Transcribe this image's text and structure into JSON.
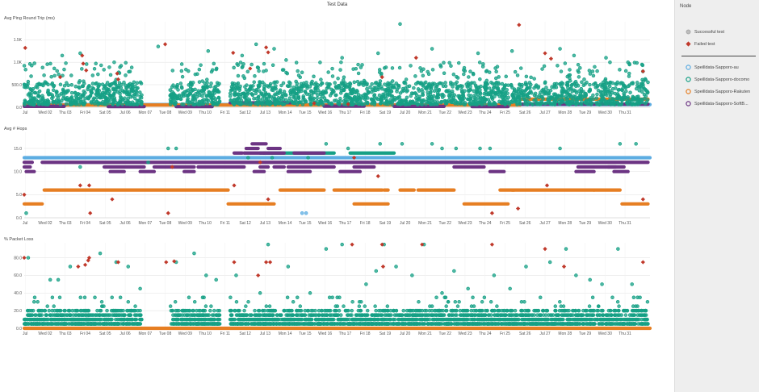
{
  "title": "Test Data",
  "sidebar": {
    "title": "Node",
    "status_items": [
      {
        "label": "Successful test",
        "shape": "circle",
        "color": "#bdbdbd"
      },
      {
        "label": "Failed test",
        "shape": "diamond",
        "color": "#c0392b"
      }
    ],
    "node_items": [
      {
        "label": "Speilldata-Sapporo-au",
        "color": "#5dade2"
      },
      {
        "label": "Speilldata-Sapporo-docomo",
        "color": "#16a085"
      },
      {
        "label": "Speilldata-Sapporo-Rakuten",
        "color": "#e67e22"
      },
      {
        "label": "Speilldata-Sapporo-SoftB...",
        "color": "#6c3483"
      }
    ]
  },
  "colors": {
    "au": "#5dade2",
    "docomo": "#16a085",
    "rakuten": "#e67e22",
    "softbank": "#6c3483",
    "failed": "#c0392b",
    "grid": "#e6e6e6"
  },
  "chart_data": [
    {
      "type": "scatter",
      "title": "Avg Ping Round Trip (ms)",
      "x_range": [
        0,
        31.3
      ],
      "y_range": [
        0,
        1900
      ],
      "y_ticks": [
        0,
        500,
        1000,
        1500
      ],
      "y_tick_labels": [
        "0.0",
        "500.0",
        "1.0K",
        "1.5K"
      ],
      "x_tick_labels": [
        "Jul",
        "Wed 02",
        "Thu 03",
        "Fri 04",
        "Sat 05",
        "Jul 06",
        "Mon 07",
        "Tue 08",
        "Wed 09",
        "Thu 10",
        "Fri 11",
        "Sat 12",
        "Jul 13",
        "Mon 14",
        "Tue 15",
        "Wed 16",
        "Thu 17",
        "Fri 18",
        "Sat 19",
        "Jul 20",
        "Mon 21",
        "Tue 22",
        "Wed 23",
        "Thu 24",
        "Fri 25",
        "Sat 26",
        "Jul 27",
        "Mon 28",
        "Tue 29",
        "Wed 30",
        "Thu 31"
      ],
      "series": [
        {
          "name": "Speilldata-Sapporo-au",
          "segments": [
            [
              0,
              31.3,
              60
            ]
          ]
        },
        {
          "name": "Speilldata-Sapporo-Rakuten",
          "segments": [
            [
              0,
              24.8,
              50
            ],
            [
              24.8,
              31.2,
              180
            ]
          ]
        },
        {
          "name": "Speilldata-Sapporo-SoftBank",
          "segments": [
            [
              0,
              2,
              20
            ],
            [
              4.2,
              6,
              15
            ],
            [
              7.6,
              9.4,
              15
            ],
            [
              10.3,
              13.5,
              100
            ],
            [
              15,
              17,
              25
            ],
            [
              18.5,
              21,
              20
            ],
            [
              22.4,
              24.2,
              15
            ],
            [
              24.8,
              31.2,
              70
            ]
          ]
        },
        {
          "name": "Speilldata-Sapporo-docomo",
          "ranges": [
            [
              0,
              5.9
            ],
            [
              7.3,
              9.8
            ],
            [
              10.3,
              31.2
            ]
          ],
          "max": 500,
          "outliers": [
            [
              1.9,
              1150
            ],
            [
              2.8,
              1200
            ],
            [
              4.5,
              1000
            ],
            [
              6.7,
              1350
            ],
            [
              9.2,
              1250
            ],
            [
              10.9,
              1150
            ],
            [
              11.6,
              1400
            ],
            [
              12.5,
              1300
            ],
            [
              13.1,
              1050
            ],
            [
              15.9,
              1100
            ],
            [
              17.7,
              1200
            ],
            [
              18.8,
              1850
            ],
            [
              20.4,
              1300
            ],
            [
              22.7,
              1200
            ],
            [
              24.4,
              1250
            ],
            [
              26.8,
              1300
            ],
            [
              27.5,
              1150
            ],
            [
              29.1,
              1100
            ],
            [
              30.2,
              1000
            ],
            [
              30.9,
              950
            ]
          ]
        }
      ],
      "failed": [
        [
          0.05,
          1320
        ],
        [
          1.8,
          670
        ],
        [
          2.9,
          1150
        ],
        [
          2.95,
          970
        ],
        [
          3.1,
          820
        ],
        [
          4.65,
          750
        ],
        [
          4.7,
          620
        ],
        [
          7.05,
          1400
        ],
        [
          10.45,
          1210
        ],
        [
          11.3,
          860
        ],
        [
          12.1,
          1330
        ],
        [
          12.2,
          1220
        ],
        [
          14.5,
          90
        ],
        [
          16.2,
          70
        ],
        [
          17.9,
          670
        ],
        [
          19.6,
          1100
        ],
        [
          24.75,
          1830
        ],
        [
          26.05,
          1200
        ],
        [
          26.35,
          1080
        ],
        [
          30.95,
          800
        ]
      ]
    },
    {
      "type": "scatter",
      "title": "Avg # Hops",
      "x_range": [
        0,
        31.3
      ],
      "y_range": [
        0,
        18.5
      ],
      "y_ticks": [
        0,
        5,
        10,
        15
      ],
      "y_tick_labels": [
        "0.0",
        "5.0",
        "10.0",
        "15.0"
      ],
      "x_tick_labels": [
        "Jul",
        "Wed 02",
        "Thu 03",
        "Fri 04",
        "Sat 05",
        "Jul 06",
        "Mon 07",
        "Tue 08",
        "Wed 09",
        "Thu 10",
        "Fri 11",
        "Sat 12",
        "Jul 13",
        "Mon 14",
        "Tue 15",
        "Wed 16",
        "Thu 17",
        "Fri 18",
        "Sat 19",
        "Jul 20",
        "Mon 21",
        "Tue 22",
        "Wed 23",
        "Thu 24",
        "Fri 25",
        "Sat 26",
        "Jul 27",
        "Mon 28",
        "Tue 29",
        "Wed 30",
        "Thu 31"
      ],
      "series": [
        {
          "name": "Speilldata-Sapporo-au",
          "segments": [
            [
              0,
              31.3,
              13
            ]
          ]
        },
        {
          "name": "Speilldata-Sapporo-docomo",
          "segments": [
            [
              11.8,
              15.5,
              14
            ],
            [
              16.3,
              18.5,
              14
            ]
          ]
        },
        {
          "name": "Speilldata-Sapporo-SoftBank",
          "segments": [
            [
              0,
              0.4,
              12
            ],
            [
              0.9,
              31.2,
              12
            ],
            [
              0,
              0.3,
              11
            ],
            [
              4,
              6,
              11
            ],
            [
              6.5,
              8.5,
              11
            ],
            [
              8.7,
              11,
              11
            ],
            [
              11.8,
              12.2,
              11
            ],
            [
              12.5,
              13,
              11
            ],
            [
              13.2,
              15.5,
              11
            ],
            [
              16.5,
              17.5,
              11
            ],
            [
              21.5,
              23,
              11
            ],
            [
              27.7,
              29.6,
              11
            ],
            [
              29.2,
              30,
              11
            ],
            [
              0.1,
              0.5,
              10
            ],
            [
              4.3,
              5,
              10
            ],
            [
              5.8,
              6.5,
              10
            ],
            [
              8,
              8.5,
              10
            ],
            [
              11.5,
              12,
              10
            ],
            [
              13.2,
              14.3,
              10
            ],
            [
              15.8,
              16.8,
              10
            ],
            [
              23.3,
              24,
              10
            ],
            [
              27.6,
              28.5,
              10
            ],
            [
              29.5,
              30.2,
              10
            ],
            [
              10.5,
              10.9,
              14
            ],
            [
              11,
              12,
              14
            ],
            [
              12,
              13,
              14
            ],
            [
              13.5,
              15,
              14
            ],
            [
              11.1,
              11.7,
              15
            ],
            [
              12.2,
              12.8,
              15
            ],
            [
              11.4,
              12.1,
              16
            ]
          ]
        },
        {
          "name": "Speilldata-Sapporo-Rakuten",
          "segments": [
            [
              0,
              0.9,
              3
            ],
            [
              1,
              10.2,
              6
            ],
            [
              10.2,
              12.5,
              3
            ],
            [
              12.8,
              15,
              6
            ],
            [
              15.5,
              17.9,
              6
            ],
            [
              18,
              18.2,
              6
            ],
            [
              16.5,
              18.2,
              3
            ],
            [
              18.8,
              19.5,
              6
            ],
            [
              19.7,
              21.5,
              6
            ],
            [
              22,
              24.2,
              3
            ],
            [
              23.8,
              24.5,
              6
            ],
            [
              24.4,
              28.5,
              6
            ],
            [
              28.5,
              29.8,
              6
            ],
            [
              29.9,
              31.2,
              3
            ]
          ]
        }
      ],
      "points": [
        [
          0.1,
          1
        ],
        [
          11.2,
          13
        ],
        [
          12.4,
          13
        ],
        [
          14.2,
          13
        ],
        [
          15.1,
          16
        ],
        [
          16.2,
          15
        ],
        [
          17.8,
          16
        ],
        [
          18.9,
          16
        ],
        [
          20.4,
          16
        ],
        [
          20.9,
          15
        ],
        [
          21.6,
          15
        ],
        [
          22.8,
          15
        ],
        [
          23.3,
          15
        ],
        [
          26.8,
          15
        ],
        [
          29.8,
          16
        ],
        [
          30.6,
          16
        ],
        [
          6.2,
          12
        ],
        [
          7.2,
          15
        ],
        [
          7.6,
          15
        ],
        [
          2.8,
          11
        ],
        [
          13.9,
          1
        ],
        [
          14.1,
          1
        ]
      ],
      "failed": [
        [
          0,
          5
        ],
        [
          2.8,
          7
        ],
        [
          3.25,
          7
        ],
        [
          3.3,
          1
        ],
        [
          4.4,
          4
        ],
        [
          7.2,
          1
        ],
        [
          7.4,
          11
        ],
        [
          10.5,
          7
        ],
        [
          11.8,
          12
        ],
        [
          12.2,
          4
        ],
        [
          16.5,
          13
        ],
        [
          17.7,
          9
        ],
        [
          23.4,
          1
        ],
        [
          24.7,
          2
        ],
        [
          26.15,
          7
        ],
        [
          30.95,
          4
        ]
      ]
    },
    {
      "type": "scatter",
      "title": "% Packet Loss",
      "x_range": [
        0,
        31.3
      ],
      "y_range": [
        0,
        97
      ],
      "y_ticks": [
        0,
        20,
        40,
        60,
        80
      ],
      "y_tick_labels": [
        "0.0",
        "20.0",
        "40.0",
        "60.0",
        "80.0"
      ],
      "x_tick_labels": [
        "Jul",
        "Wed 02",
        "Thu 03",
        "Fri 04",
        "Sat 05",
        "Jul 06",
        "Mon 07",
        "Tue 08",
        "Wed 09",
        "Thu 10",
        "Fri 11",
        "Sat 12",
        "Jul 13",
        "Mon 14",
        "Tue 15",
        "Wed 16",
        "Thu 17",
        "Fri 18",
        "Sat 19",
        "Jul 20",
        "Mon 21",
        "Tue 22",
        "Wed 23",
        "Thu 24",
        "Fri 25",
        "Sat 26",
        "Jul 27",
        "Mon 28",
        "Tue 29",
        "Wed 30",
        "Thu 31"
      ],
      "series": [
        {
          "name": "Speilldata-Sapporo-Rakuten",
          "segments": [
            [
              0,
              31.3,
              0
            ]
          ]
        },
        {
          "name": "Speilldata-Sapporo-docomo",
          "levels": [
            5,
            10,
            15,
            20
          ],
          "ranges": [
            [
              0,
              5.9
            ],
            [
              7.3,
              9.8
            ],
            [
              10.3,
              31.2
            ]
          ]
        }
      ],
      "points": [
        [
          0.2,
          80
        ],
        [
          1.3,
          55
        ],
        [
          1.7,
          55
        ],
        [
          2.3,
          70
        ],
        [
          3.8,
          85
        ],
        [
          4.6,
          75
        ],
        [
          5.2,
          70
        ],
        [
          5.8,
          45
        ],
        [
          7.6,
          75
        ],
        [
          8.5,
          85
        ],
        [
          9.1,
          60
        ],
        [
          9.6,
          55
        ],
        [
          10.6,
          60
        ],
        [
          11.8,
          40
        ],
        [
          12.2,
          95
        ],
        [
          13.2,
          70
        ],
        [
          14.3,
          40
        ],
        [
          15.1,
          90
        ],
        [
          15.9,
          95
        ],
        [
          17.1,
          50
        ],
        [
          17.6,
          65
        ],
        [
          18,
          95
        ],
        [
          18.6,
          70
        ],
        [
          19.4,
          60
        ],
        [
          20,
          95
        ],
        [
          20.9,
          40
        ],
        [
          21.5,
          65
        ],
        [
          22.2,
          45
        ],
        [
          23.5,
          60
        ],
        [
          24.3,
          45
        ],
        [
          25.1,
          70
        ],
        [
          26.3,
          75
        ],
        [
          27.1,
          90
        ],
        [
          27.6,
          60
        ],
        [
          28.3,
          55
        ],
        [
          28.9,
          50
        ],
        [
          29.7,
          90
        ],
        [
          30.4,
          50
        ],
        [
          30.8,
          35
        ]
      ],
      "failed": [
        [
          0,
          80
        ],
        [
          2.7,
          70
        ],
        [
          3.05,
          72
        ],
        [
          3.2,
          77
        ],
        [
          3.25,
          80
        ],
        [
          4.7,
          75
        ],
        [
          7.1,
          75
        ],
        [
          7.5,
          76
        ],
        [
          10.5,
          75
        ],
        [
          11.7,
          60
        ],
        [
          12.1,
          75
        ],
        [
          12.3,
          75
        ],
        [
          16.4,
          95
        ],
        [
          17.9,
          95
        ],
        [
          17.95,
          70
        ],
        [
          19.9,
          95
        ],
        [
          23.4,
          95
        ],
        [
          26.05,
          90
        ],
        [
          27.0,
          70
        ],
        [
          30.95,
          75
        ]
      ]
    }
  ]
}
